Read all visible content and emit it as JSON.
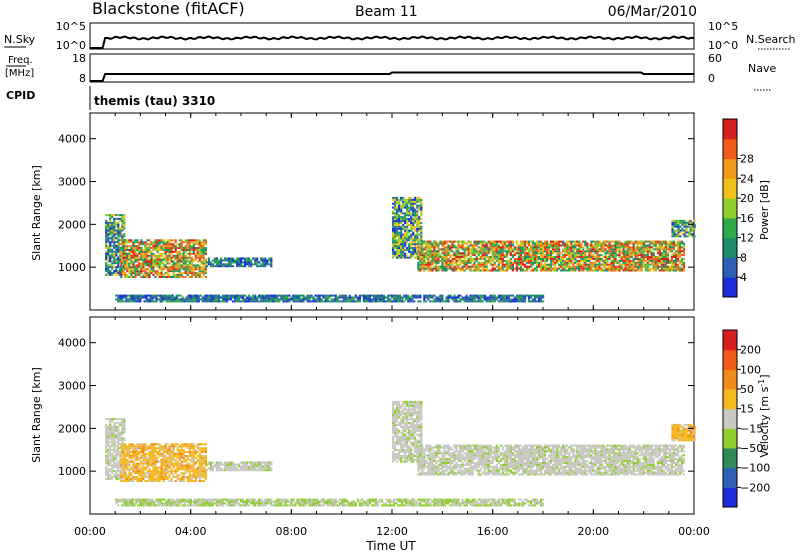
{
  "header": {
    "station": "Blackstone (fitACF)",
    "beam": "Beam 11",
    "date": "06/Mar/2010"
  },
  "top_panels": {
    "nsky": {
      "left_label": "N.Sky",
      "right_label": "N.Search",
      "left_ticks": [
        "10^5",
        "10^0"
      ],
      "right_ticks": [
        "10^5",
        "10^0"
      ]
    },
    "freq": {
      "left_label_1": "Freq.",
      "left_label_2": "[MHz]",
      "right_label": "Nave",
      "left_ticks": [
        "18",
        "8"
      ],
      "right_ticks": [
        "60",
        "0"
      ]
    },
    "cpid": {
      "label": "CPID",
      "value": "themis (tau) 3310"
    }
  },
  "time_axis": {
    "label": "Time UT",
    "ticks": [
      "00:00",
      "04:00",
      "08:00",
      "12:00",
      "16:00",
      "20:00",
      "00:00"
    ]
  },
  "chart_data": [
    {
      "type": "heatmap",
      "title": "",
      "xlabel": "Time UT",
      "ylabel": "Slant Range [km]",
      "xlim": [
        0,
        24
      ],
      "ylim": [
        0,
        4600
      ],
      "yticks": [
        1000,
        2000,
        3000,
        4000
      ],
      "colorbar": {
        "label": "Power [dB]",
        "ticks": [
          4,
          8,
          12,
          16,
          20,
          24,
          28
        ],
        "colors": [
          "#1a2fd6",
          "#2f5fb4",
          "#1e8a6e",
          "#2fa84a",
          "#8ccf2d",
          "#f0c21a",
          "#f09a1a",
          "#f05a1a",
          "#d81f1f"
        ]
      },
      "regions": [
        {
          "t": [
            0.6,
            1.4
          ],
          "r": [
            800,
            2200
          ],
          "level": "mixed"
        },
        {
          "t": [
            1.2,
            4.6
          ],
          "r": [
            750,
            1650
          ],
          "level": "high"
        },
        {
          "t": [
            4.6,
            7.2
          ],
          "r": [
            1000,
            1200
          ],
          "level": "low"
        },
        {
          "t": [
            12.0,
            13.2
          ],
          "r": [
            1200,
            2600
          ],
          "level": "mixed"
        },
        {
          "t": [
            13.0,
            23.6
          ],
          "r": [
            900,
            1600
          ],
          "level": "high"
        },
        {
          "t": [
            23.1,
            24.0
          ],
          "r": [
            1700,
            2100
          ],
          "level": "mixed"
        },
        {
          "t": [
            1.0,
            18.0
          ],
          "r": [
            180,
            320
          ],
          "level": "low"
        }
      ]
    },
    {
      "type": "heatmap",
      "title": "",
      "xlabel": "Time UT",
      "ylabel": "Slant Range [km]",
      "xlim": [
        0,
        24
      ],
      "ylim": [
        0,
        4600
      ],
      "yticks": [
        1000,
        2000,
        3000,
        4000
      ],
      "colorbar": {
        "label": "Velocity [m s^-1]",
        "ticks": [
          200,
          100,
          50,
          15,
          -15,
          -50,
          -100,
          -200
        ],
        "colors": [
          "#1a2fd6",
          "#2f5fb4",
          "#2f8a5a",
          "#8ccf2d",
          "#c8c8c0",
          "#f5b820",
          "#f08a1a",
          "#f05a1a",
          "#d81f1f"
        ]
      },
      "regions": [
        {
          "t": [
            0.6,
            1.4
          ],
          "r": [
            800,
            2200
          ],
          "level": "grey"
        },
        {
          "t": [
            1.2,
            4.6
          ],
          "r": [
            750,
            1650
          ],
          "level": "orange"
        },
        {
          "t": [
            4.6,
            7.2
          ],
          "r": [
            1000,
            1200
          ],
          "level": "grey"
        },
        {
          "t": [
            12.0,
            13.2
          ],
          "r": [
            1200,
            2600
          ],
          "level": "grey"
        },
        {
          "t": [
            13.0,
            23.6
          ],
          "r": [
            900,
            1600
          ],
          "level": "grey"
        },
        {
          "t": [
            23.1,
            24.0
          ],
          "r": [
            1700,
            2100
          ],
          "level": "orange"
        },
        {
          "t": [
            1.0,
            18.0
          ],
          "r": [
            180,
            320
          ],
          "level": "greenish"
        }
      ]
    }
  ],
  "colorbar_labels": {
    "power_1": "Power [dB]",
    "velocity_1": "Velocity [m s",
    "velocity_sup": "-1",
    "velocity_2": "]"
  }
}
